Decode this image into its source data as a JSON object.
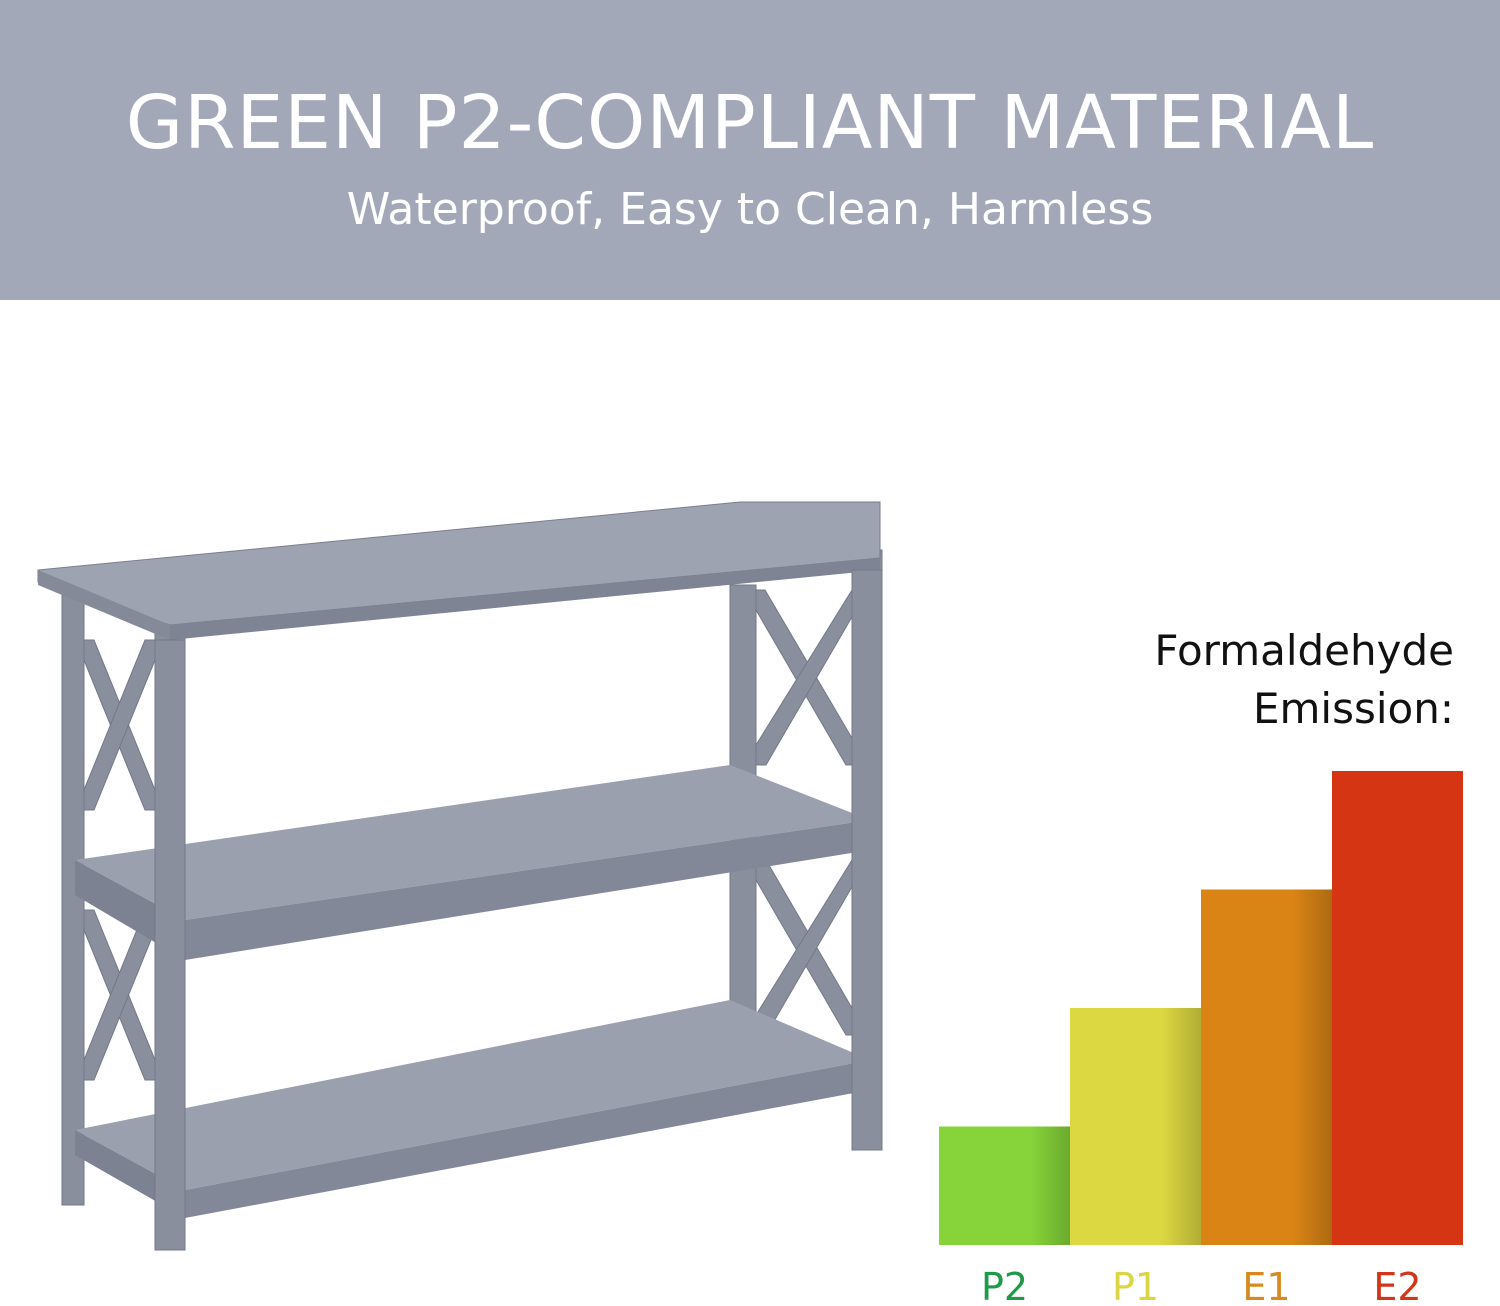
{
  "banner": {
    "title": "GREEN P2-COMPLIANT MATERIAL",
    "subtitle": "Waterproof, Easy to Clean, Harmless",
    "background_color": "#a3a8b8"
  },
  "product": {
    "description": "grey 3-tier console table with X-shaped side frames",
    "color": "#8a8f9e"
  },
  "chart_data": {
    "type": "bar",
    "title": "Formaldehyde Emission:",
    "categories": [
      "P2",
      "P1",
      "E1",
      "E2"
    ],
    "values": [
      1,
      2,
      3,
      4
    ],
    "colors": [
      "#86d43a",
      "#dcd842",
      "#da8416",
      "#d63514"
    ],
    "label_colors": [
      "#1e9a4a",
      "#d9d545",
      "#d98a1e",
      "#d2361a"
    ],
    "axes_shown": false,
    "grid": false
  }
}
